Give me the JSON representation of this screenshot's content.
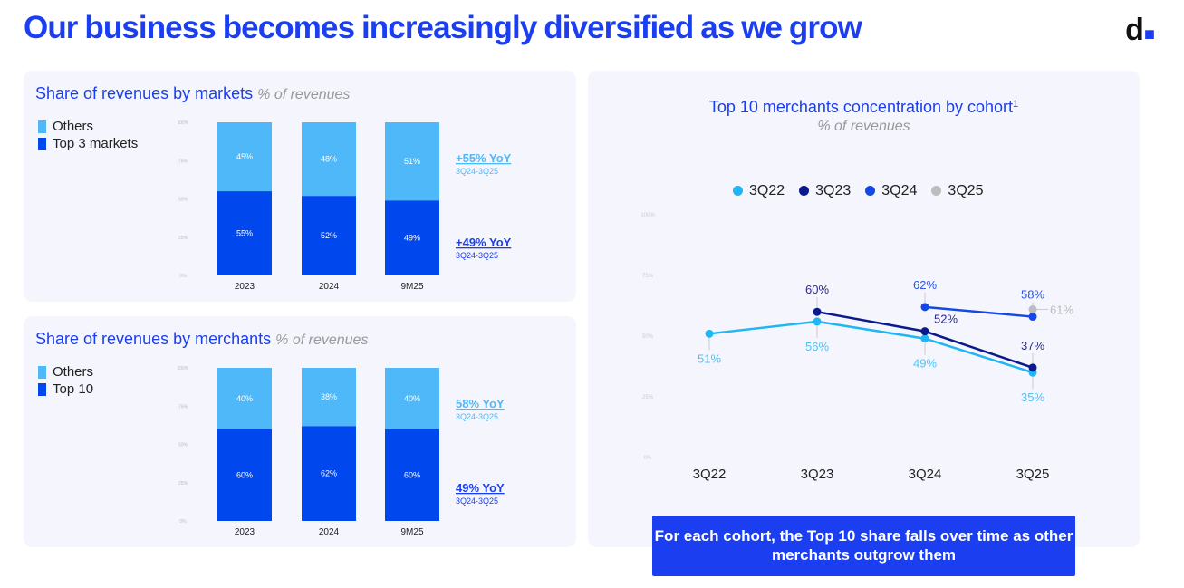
{
  "title": "Our business becomes increasingly diversified as we grow",
  "logo": "d",
  "colors": {
    "accent": "#1a3ef0",
    "light": "#4fb8f8",
    "dark": "#0047ee"
  },
  "markets": {
    "title": "Share of revenues by markets",
    "subtitle": "% of revenues",
    "legend": [
      "Others",
      "Top 3 markets"
    ],
    "yoy_top": "+55% YoY",
    "yoy_top_sub": "3Q24-3Q25",
    "yoy_bottom": "+49% YoY",
    "yoy_bottom_sub": "3Q24-3Q25"
  },
  "merchants": {
    "title": "Share of revenues by merchants",
    "subtitle": "% of revenues",
    "legend": [
      "Others",
      "Top 10"
    ],
    "yoy_top": "58% YoY",
    "yoy_top_sub": "3Q24-3Q25",
    "yoy_bottom": "49% YoY",
    "yoy_bottom_sub": "3Q24-3Q25"
  },
  "cohort": {
    "title": "Top 10 merchants concentration by cohort",
    "footnote": "1",
    "subtitle": "% of revenues"
  },
  "callout": "For each cohort, the Top 10 share falls over time as other merchants outgrow them",
  "chart_data": [
    {
      "type": "bar",
      "stacked": true,
      "title": "Share of revenues by markets",
      "categories": [
        "2023",
        "2024",
        "9M25"
      ],
      "series": [
        {
          "name": "Top 3 markets",
          "values": [
            55,
            52,
            49
          ],
          "color": "#0047ee"
        },
        {
          "name": "Others",
          "values": [
            45,
            48,
            51
          ],
          "color": "#4fb8f8"
        }
      ],
      "ylim": [
        0,
        100
      ],
      "yticks": [
        "0%",
        "25%",
        "50%",
        "75%",
        "100%"
      ]
    },
    {
      "type": "bar",
      "stacked": true,
      "title": "Share of revenues by merchants",
      "categories": [
        "2023",
        "2024",
        "9M25"
      ],
      "series": [
        {
          "name": "Top 10",
          "values": [
            60,
            62,
            60
          ],
          "color": "#0047ee"
        },
        {
          "name": "Others",
          "values": [
            40,
            38,
            40
          ],
          "color": "#4fb8f8"
        }
      ],
      "ylim": [
        0,
        100
      ],
      "yticks": [
        "0%",
        "25%",
        "50%",
        "75%",
        "100%"
      ]
    },
    {
      "type": "line",
      "title": "Top 10 merchants concentration by cohort",
      "categories": [
        "3Q22",
        "3Q23",
        "3Q24",
        "3Q25"
      ],
      "ylim": [
        0,
        100
      ],
      "yticks": [
        "0%",
        "25%",
        "50%",
        "75%",
        "100%"
      ],
      "series": [
        {
          "name": "3Q22",
          "values": [
            51,
            56,
            49,
            35
          ],
          "color": "#1fb6f5"
        },
        {
          "name": "3Q23",
          "values": [
            null,
            60,
            52,
            37
          ],
          "color": "#0a1a8c"
        },
        {
          "name": "3Q24",
          "values": [
            null,
            null,
            62,
            58
          ],
          "color": "#1448e6"
        },
        {
          "name": "3Q25",
          "values": [
            null,
            null,
            null,
            61
          ],
          "color": "#bdbdbd"
        }
      ]
    }
  ]
}
